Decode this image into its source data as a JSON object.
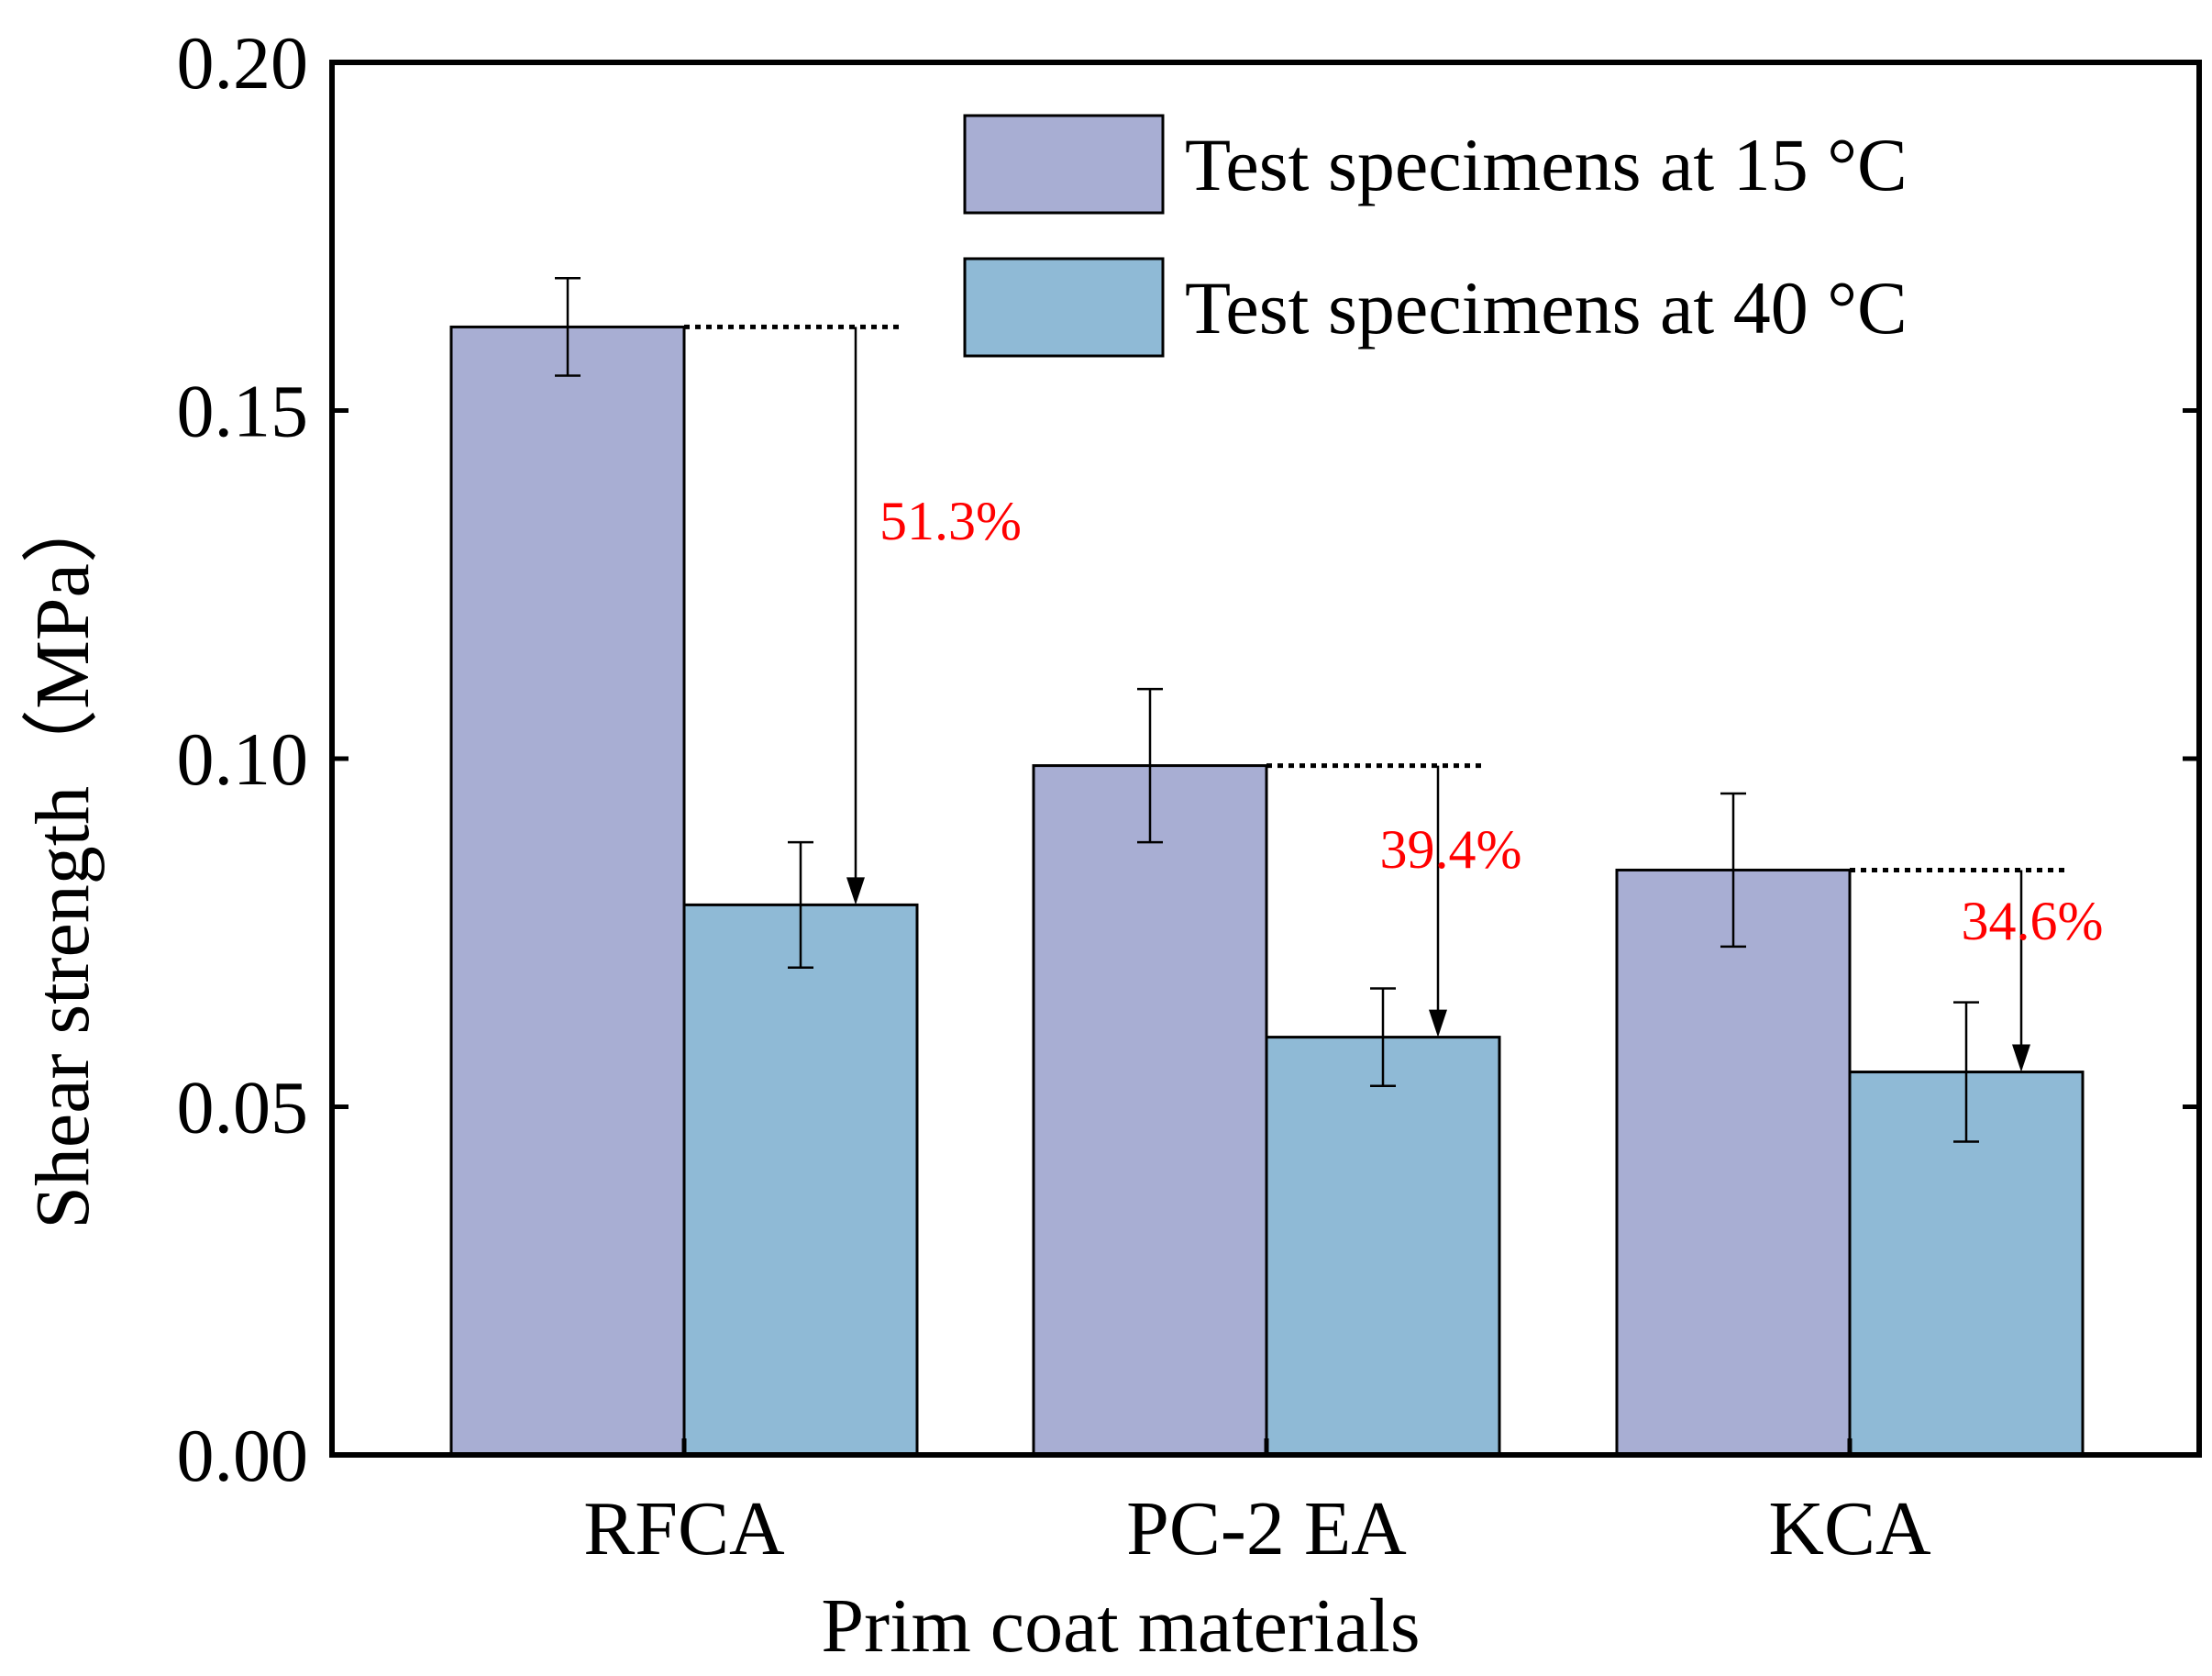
{
  "chart_data": {
    "type": "bar",
    "xlabel": "Prim coat materials",
    "ylabel": "Shear strength（MPa）",
    "ylim": [
      0,
      0.2
    ],
    "yticks": [
      "0.00",
      "0.05",
      "0.10",
      "0.15",
      "0.20"
    ],
    "ytick_values": [
      0,
      0.05,
      0.1,
      0.15,
      0.2
    ],
    "categories": [
      "RFCA",
      "PC-2 EA",
      "KCA"
    ],
    "series": [
      {
        "name": "Test specimens at 15 °C",
        "color": "#a8aed3",
        "values": [
          0.162,
          0.099,
          0.084
        ],
        "errors": [
          0.007,
          0.011,
          0.011
        ]
      },
      {
        "name": "Test specimens at 40 °C",
        "color": "#8fbad6",
        "values": [
          0.079,
          0.06,
          0.055
        ],
        "errors": [
          0.009,
          0.007,
          0.01
        ]
      }
    ],
    "annotations": [
      "51.3%",
      "39.4%",
      "34.6%"
    ],
    "annotation_color": "#ff0000",
    "legend_position": "top-right",
    "grid": false
  }
}
